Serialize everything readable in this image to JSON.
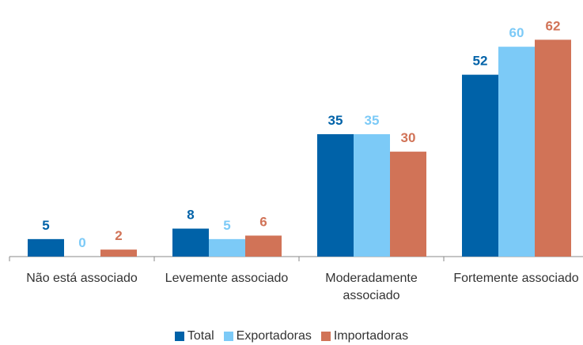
{
  "chart_data": {
    "type": "bar",
    "categories": [
      "Não está associado",
      "Levemente associado",
      "Moderadamente associado",
      "Fortemente associado"
    ],
    "series": [
      {
        "name": "Total",
        "color": "#0062a8",
        "values": [
          5,
          8,
          35,
          52
        ]
      },
      {
        "name": "Exportadoras",
        "color": "#7ccaf7",
        "values": [
          0,
          5,
          35,
          60
        ]
      },
      {
        "name": "Importadoras",
        "color": "#d17357",
        "values": [
          2,
          6,
          30,
          62
        ]
      }
    ],
    "legend": "bottom"
  }
}
